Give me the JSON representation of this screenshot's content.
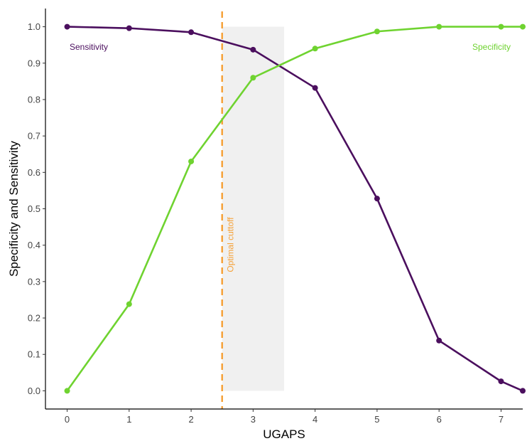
{
  "chart_data": {
    "type": "line",
    "xlabel": "UGAPS",
    "ylabel": "Specificity and Sensitivity",
    "xlim": [
      -0.35,
      7.35
    ],
    "ylim": [
      -0.05,
      1.05
    ],
    "xticks": [
      "0",
      "1",
      "2",
      "3",
      "4",
      "5",
      "6",
      "7"
    ],
    "yticks": [
      "0.0",
      "0.1",
      "0.2",
      "0.3",
      "0.4",
      "0.5",
      "0.6",
      "0.7",
      "0.8",
      "0.9",
      "1.0"
    ],
    "grid": false,
    "series": [
      {
        "name": "Sensitivity",
        "color": "#4b0f5e",
        "x": [
          0,
          1,
          2,
          3,
          4,
          5,
          6,
          7,
          7.35
        ],
        "y": [
          1.0,
          0.996,
          0.985,
          0.937,
          0.832,
          0.528,
          0.138,
          0.026,
          0.0
        ]
      },
      {
        "name": "Specificity",
        "color": "#6fd330",
        "x": [
          0,
          1,
          2,
          3,
          4,
          5,
          6,
          7,
          7.35
        ],
        "y": [
          0.0,
          0.238,
          0.63,
          0.86,
          0.94,
          0.987,
          1.0,
          1.0,
          1.0
        ]
      }
    ],
    "cutoff": {
      "x": 2.5,
      "label": "Optimal cuttoff",
      "color": "#f5a23a"
    },
    "shaded_region": {
      "x": [
        2.5,
        3.5
      ],
      "y": [
        0.0,
        1.0
      ],
      "color": "#f0f0f0"
    },
    "annotations": [
      {
        "text": "Sensitivity",
        "color": "#4b0f5e"
      },
      {
        "text": "Specificity",
        "color": "#6fd330"
      }
    ]
  }
}
